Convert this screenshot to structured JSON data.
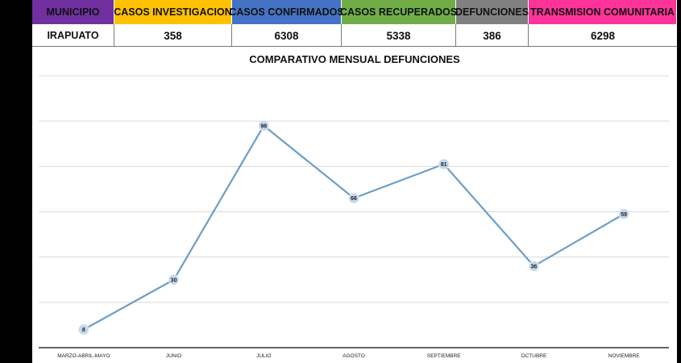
{
  "table": {
    "headers": [
      {
        "label": "MUNICIPIO",
        "color": "#7030a0"
      },
      {
        "label": "CASOS INVESTIGACION",
        "color": "#ffc000"
      },
      {
        "label": "CASOS CONFIRMADOS",
        "color": "#4472c4"
      },
      {
        "label": "CASOS RECUPERADOS",
        "color": "#70ad47"
      },
      {
        "label": "DEFUNCIONES",
        "color": "#808080"
      },
      {
        "label": "TRANSMISION COMUNITARIA",
        "color": "#ff3399"
      }
    ],
    "values": [
      "IRAPUATO",
      "358",
      "6308",
      "5338",
      "386",
      "6298"
    ]
  },
  "chart_data": {
    "type": "line",
    "title": "COMPARATIVO MENSUAL DEFUNCIONES",
    "categories": [
      "MARZO-ABRIL-MAYO",
      "JUNIO",
      "JULIO",
      "AGOSTO",
      "SEPTIEMBRE",
      "OCTUBRE",
      "NOVIEMBRE"
    ],
    "values": [
      8,
      30,
      98,
      66,
      81,
      36,
      59
    ],
    "ylim": [
      0,
      120
    ],
    "grid": true,
    "line_color": "#6a9ec8",
    "marker_color": "#c5d8ed"
  }
}
